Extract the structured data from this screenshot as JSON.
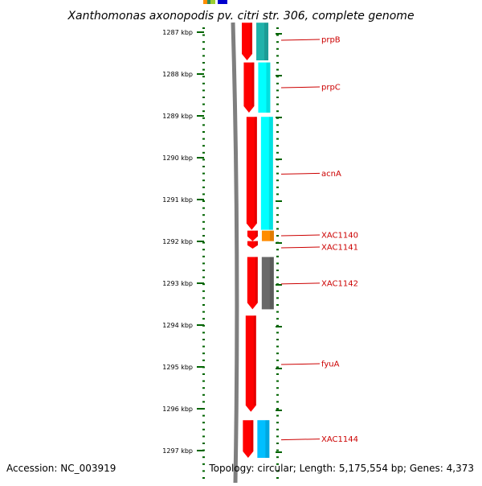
{
  "title": "Xanthomonas axonopodis pv. citri str. 306, complete genome",
  "footer": {
    "accession": "Accession: NC_003919",
    "summary": "Topology: circular; Length: 5,175,554 bp; Genes: 4,373"
  },
  "colors": {
    "backbone": "#7f7f7f",
    "ticks": "#006400",
    "label_text": "#cc0000",
    "gene_forward": "#ff0000",
    "gene_cog": "#00ffff"
  },
  "axis": {
    "unit": "kbp",
    "ticks": [
      {
        "value": 1287,
        "label": "1287 kbp"
      },
      {
        "value": 1288,
        "label": "1288 kbp"
      },
      {
        "value": 1289,
        "label": "1289 kbp"
      },
      {
        "value": 1290,
        "label": "1290 kbp"
      },
      {
        "value": 1291,
        "label": "1291 kbp"
      },
      {
        "value": 1292,
        "label": "1292 kbp"
      },
      {
        "value": 1293,
        "label": "1293 kbp"
      },
      {
        "value": 1294,
        "label": "1294 kbp"
      },
      {
        "value": 1295,
        "label": "1295 kbp"
      },
      {
        "value": 1296,
        "label": "1296 kbp"
      },
      {
        "value": 1297,
        "label": "1297 kbp"
      }
    ]
  },
  "top_strip_colors": [
    "#ff8c00",
    "#2e8b57",
    "#9acd32",
    "#0000cd"
  ],
  "genes": [
    {
      "name": "prpB",
      "start": 1286.85,
      "end": 1287.75,
      "cog_color": "#20b2aa"
    },
    {
      "name": "prpC",
      "start": 1287.8,
      "end": 1289.0,
      "cog_color": "#00ffff"
    },
    {
      "name": "acnA",
      "start": 1289.1,
      "end": 1291.8,
      "cog_color": "#00ffff"
    },
    {
      "name": "XAC1140",
      "start": 1291.82,
      "end": 1292.07,
      "cog_color": "#ff8c00"
    },
    {
      "name": "XAC1141",
      "start": 1292.07,
      "end": 1292.25,
      "cog_color": ""
    },
    {
      "name": "XAC1142",
      "start": 1292.45,
      "end": 1293.7,
      "cog_color": "#696969"
    },
    {
      "name": "fyuA",
      "start": 1293.85,
      "end": 1296.15,
      "cog_color": ""
    },
    {
      "name": "XAC1144",
      "start": 1296.35,
      "end": 1297.25,
      "cog_color": "#00bfff"
    }
  ]
}
